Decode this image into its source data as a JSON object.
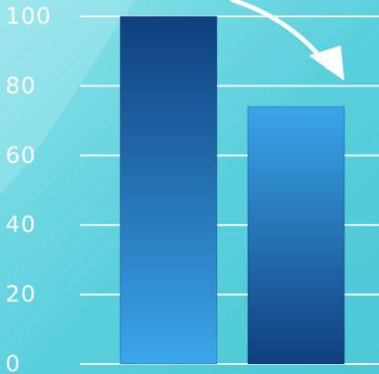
{
  "chart_data": {
    "type": "bar",
    "categories": [
      "",
      ""
    ],
    "values": [
      100,
      74
    ],
    "title": "",
    "xlabel": "",
    "ylabel": "",
    "ylim": [
      0,
      100
    ],
    "y_ticks": [
      "0",
      "20",
      "40",
      "60",
      "80",
      "100"
    ],
    "grid": true,
    "legend": "none",
    "annotation": "arrow pointing down from the first bar toward the second bar",
    "bar_gradients": [
      {
        "top": "#0f3f7d",
        "bottom": "#3aa6ea"
      },
      {
        "top": "#3aa6ea",
        "bottom": "#0f3f7d"
      }
    ],
    "colors": {
      "background": "#52ccd9",
      "grid": "#ffffff",
      "tick_text": "#ffffff",
      "arrow": "#ffffff"
    }
  }
}
